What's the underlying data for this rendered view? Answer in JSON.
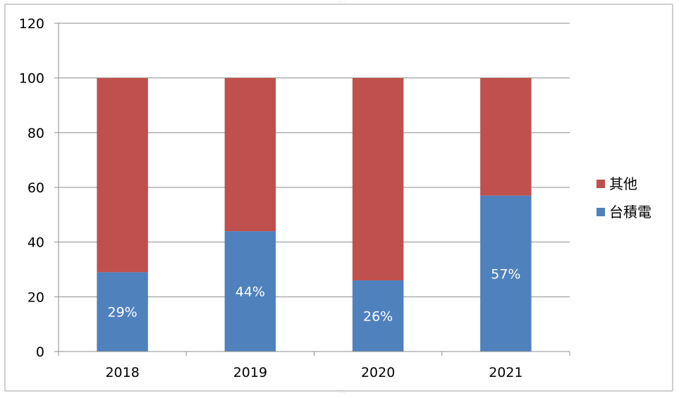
{
  "chart_data": {
    "type": "bar",
    "stacked": true,
    "categories": [
      "2018",
      "2019",
      "2020",
      "2021"
    ],
    "series": [
      {
        "name": "台積電",
        "values": [
          29,
          44,
          26,
          57
        ],
        "color": "#4f81bd",
        "data_labels": [
          "29%",
          "44%",
          "26%",
          "57%"
        ]
      },
      {
        "name": "其他",
        "values": [
          71,
          56,
          74,
          43
        ],
        "color": "#c0504d"
      }
    ],
    "ylim": [
      0,
      120
    ],
    "yticks": [
      "0",
      "20",
      "40",
      "60",
      "80",
      "100",
      "120"
    ],
    "grid": true,
    "legend_position": "right"
  }
}
